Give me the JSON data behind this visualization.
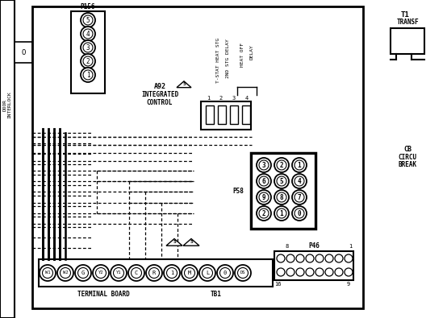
{
  "bg_color": "#ffffff",
  "line_color": "#000000",
  "p156_pins": [
    "5",
    "4",
    "3",
    "2",
    "1"
  ],
  "p58_pins": [
    [
      "3",
      "2",
      "1"
    ],
    [
      "6",
      "5",
      "4"
    ],
    [
      "9",
      "8",
      "7"
    ],
    [
      "2",
      "1",
      "0"
    ]
  ],
  "terminal_labels": [
    "W1",
    "W2",
    "G",
    "Y2",
    "Y1",
    "C",
    "R",
    "1",
    "M",
    "L",
    "0",
    "DS"
  ],
  "door_interlock": "DOOR\nINTERLOCK",
  "t1_text": [
    "T1",
    "TRANSF"
  ],
  "cb_text": [
    "CB",
    "CIRCU",
    "BREAK"
  ],
  "a92_text": [
    "A92",
    "INTEGRATED",
    "CONTROL"
  ],
  "labels_rot": [
    "T-STAT HEAT STG",
    "2ND STG DELAY",
    "HEAT OFF",
    "DELAY"
  ],
  "conn_nums": [
    "1",
    "2",
    "3",
    "4"
  ],
  "term_board": "TERMINAL BOARD",
  "tb1": "TB1",
  "p46": "P46",
  "p58": "P58",
  "p156": "P156"
}
